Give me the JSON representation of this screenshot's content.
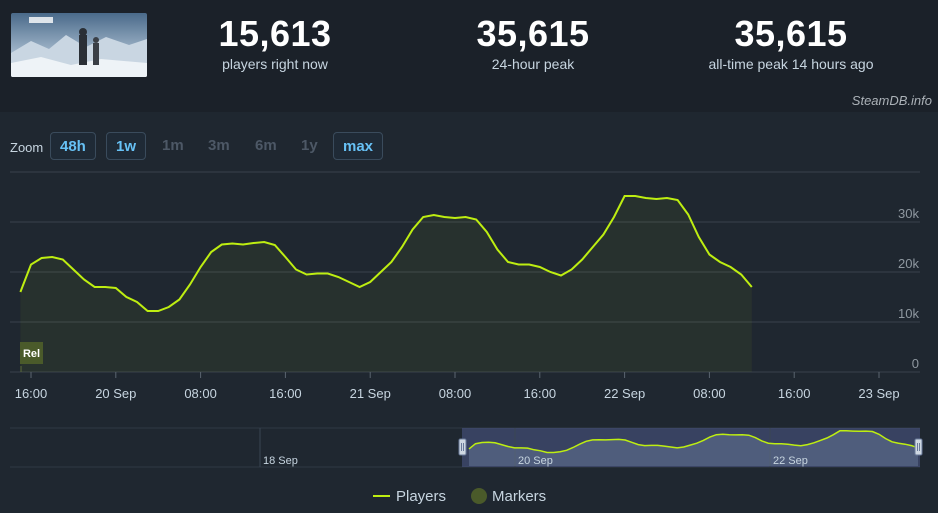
{
  "stats": [
    {
      "value": "15,613",
      "label": "players right now"
    },
    {
      "value": "35,615",
      "label": "24-hour peak"
    },
    {
      "value": "35,615",
      "label": "all-time peak 14 hours ago"
    }
  ],
  "credit": "SteamDB.info",
  "zoom": {
    "label": "Zoom",
    "options": [
      {
        "label": "48h",
        "active": true
      },
      {
        "label": "1w",
        "active": true
      },
      {
        "label": "1m",
        "active": false
      },
      {
        "label": "3m",
        "active": false
      },
      {
        "label": "6m",
        "active": false
      },
      {
        "label": "1y",
        "active": false
      },
      {
        "label": "max",
        "active": true
      }
    ]
  },
  "colors": {
    "line": "#beee11",
    "accent": "#67c1f5",
    "marker": "#4a5a2a"
  },
  "legend": {
    "players": "Players",
    "markers": "Markers"
  },
  "chart_data": {
    "type": "line",
    "title": "",
    "xlabel": "",
    "ylabel": "",
    "ylim": [
      0,
      40000
    ],
    "y_ticks": [
      {
        "value": 0,
        "label": "0"
      },
      {
        "value": 10000,
        "label": "10k"
      },
      {
        "value": 20000,
        "label": "20k"
      },
      {
        "value": 30000,
        "label": "30k"
      }
    ],
    "x_ticks": [
      "16:00",
      "20 Sep",
      "08:00",
      "16:00",
      "21 Sep",
      "08:00",
      "16:00",
      "22 Sep",
      "08:00",
      "16:00",
      "23 Sep"
    ],
    "x_unit": "hours since 19 Sep 16:00",
    "series": [
      {
        "name": "Players",
        "points": [
          [
            -1,
            16000
          ],
          [
            0,
            21500
          ],
          [
            1,
            22800
          ],
          [
            2,
            23000
          ],
          [
            3,
            22500
          ],
          [
            4,
            20500
          ],
          [
            5,
            18500
          ],
          [
            6,
            17000
          ],
          [
            7,
            17000
          ],
          [
            8,
            16800
          ],
          [
            9,
            15000
          ],
          [
            10,
            14000
          ],
          [
            11,
            12200
          ],
          [
            12,
            12200
          ],
          [
            13,
            13000
          ],
          [
            14,
            14500
          ],
          [
            15,
            17500
          ],
          [
            16,
            21000
          ],
          [
            17,
            24000
          ],
          [
            18,
            25500
          ],
          [
            19,
            25700
          ],
          [
            20,
            25500
          ],
          [
            21,
            25800
          ],
          [
            22,
            26000
          ],
          [
            23,
            25400
          ],
          [
            24,
            23000
          ],
          [
            25,
            20500
          ],
          [
            26,
            19500
          ],
          [
            27,
            19700
          ],
          [
            28,
            19700
          ],
          [
            29,
            19000
          ],
          [
            30,
            18000
          ],
          [
            31,
            17000
          ],
          [
            32,
            18000
          ],
          [
            33,
            20000
          ],
          [
            34,
            22000
          ],
          [
            35,
            25000
          ],
          [
            36,
            28500
          ],
          [
            37,
            31000
          ],
          [
            38,
            31400
          ],
          [
            39,
            31000
          ],
          [
            40,
            30800
          ],
          [
            41,
            31000
          ],
          [
            42,
            30500
          ],
          [
            43,
            28000
          ],
          [
            44,
            24500
          ],
          [
            45,
            22000
          ],
          [
            46,
            21500
          ],
          [
            47,
            21500
          ],
          [
            48,
            21000
          ],
          [
            49,
            20000
          ],
          [
            50,
            19300
          ],
          [
            51,
            20500
          ],
          [
            52,
            22500
          ],
          [
            53,
            25000
          ],
          [
            54,
            27500
          ],
          [
            55,
            31000
          ],
          [
            56,
            35200
          ],
          [
            57,
            35200
          ],
          [
            58,
            34800
          ],
          [
            59,
            34600
          ],
          [
            60,
            34800
          ],
          [
            61,
            34400
          ],
          [
            62,
            31500
          ],
          [
            63,
            27000
          ],
          [
            64,
            23500
          ],
          [
            65,
            22000
          ],
          [
            66,
            21000
          ],
          [
            67,
            19500
          ],
          [
            68,
            17000
          ]
        ]
      }
    ],
    "markers": [
      {
        "label": "Rel"
      }
    ],
    "navigator_labels": [
      "18 Sep",
      "20 Sep",
      "22 Sep"
    ]
  }
}
